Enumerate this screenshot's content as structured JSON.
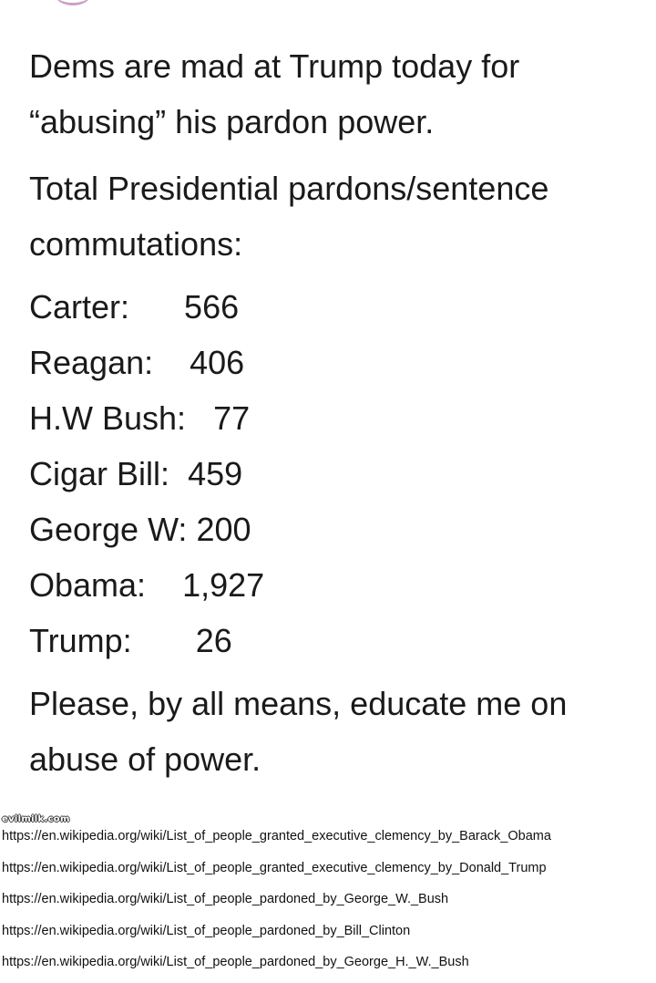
{
  "post": {
    "intro": "Dems are mad at Trump today for “abusing” his pardon power.",
    "heading": "Total Presidential pardons/sentence commutations:",
    "stats": [
      {
        "name": "Carter:",
        "value": "566"
      },
      {
        "name": "Reagan:",
        "value": "406"
      },
      {
        "name": "H.W Bush:",
        "value": "77"
      },
      {
        "name": "Cigar Bill:",
        "value": "459"
      },
      {
        "name": "George W:",
        "value": "200"
      },
      {
        "name": "Obama:",
        "value": "1,927"
      },
      {
        "name": "Trump:",
        "value": "26"
      }
    ],
    "closing": "Please, by all means, educate me on abuse of power."
  },
  "watermark": "evilmilk.com",
  "sources": [
    "https://en.wikipedia.org/wiki/List_of_people_granted_executive_clemency_by_Barack_Obama",
    "https://en.wikipedia.org/wiki/List_of_people_granted_executive_clemency_by_Donald_Trump",
    "https://en.wikipedia.org/wiki/List_of_people_pardoned_by_George_W._Bush",
    "https://en.wikipedia.org/wiki/List_of_people_pardoned_by_Bill_Clinton",
    "https://en.wikipedia.org/wiki/List_of_people_pardoned_by_George_H._W._Bush"
  ]
}
